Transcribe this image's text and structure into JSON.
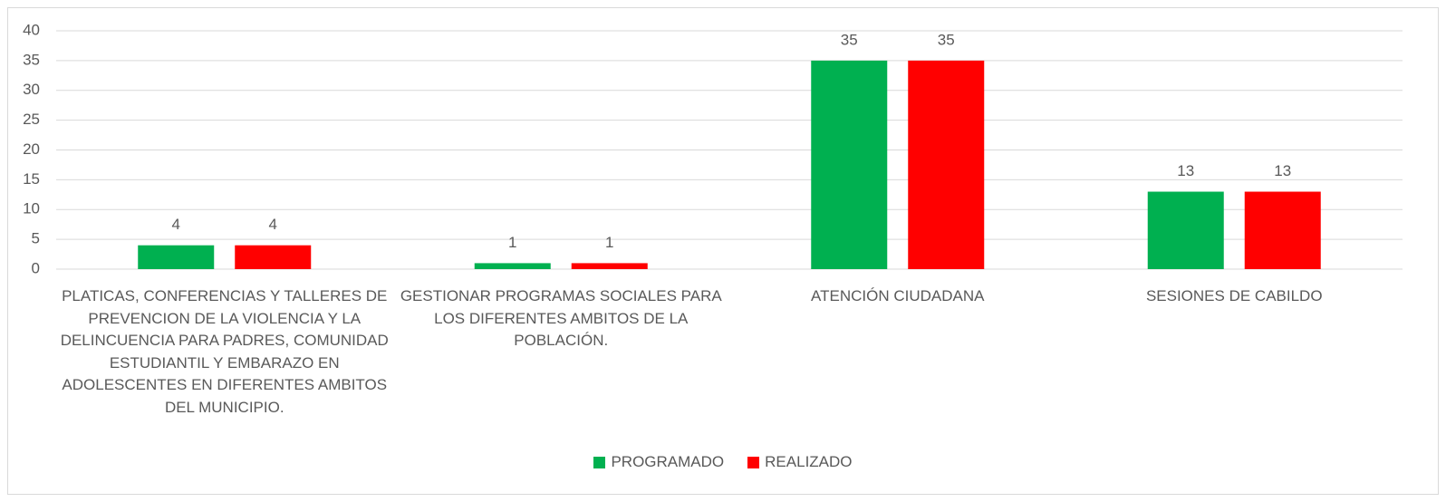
{
  "chart_data": {
    "type": "bar",
    "categories": [
      "PLATICAS, CONFERENCIAS Y TALLERES DE PREVENCION DE LA VIOLENCIA Y LA DELINCUENCIA PARA PADRES, COMUNIDAD ESTUDIANTIL Y EMBARAZO EN ADOLESCENTES EN DIFERENTES AMBITOS DEL MUNICIPIO.",
      "GESTIONAR PROGRAMAS SOCIALES PARA LOS DIFERENTES AMBITOS DE LA POBLACIÓN.",
      "ATENCIÓN CIUDADANA",
      "SESIONES DE CABILDO"
    ],
    "series": [
      {
        "name": "PROGRAMADO",
        "color": "#00b050",
        "values": [
          4,
          1,
          35,
          13
        ]
      },
      {
        "name": "REALIZADO",
        "color": "#ff0000",
        "values": [
          4,
          1,
          35,
          13
        ]
      }
    ],
    "ylim": [
      0,
      40
    ],
    "yticks": [
      0,
      5,
      10,
      15,
      20,
      25,
      30,
      35,
      40
    ],
    "grid": true
  }
}
